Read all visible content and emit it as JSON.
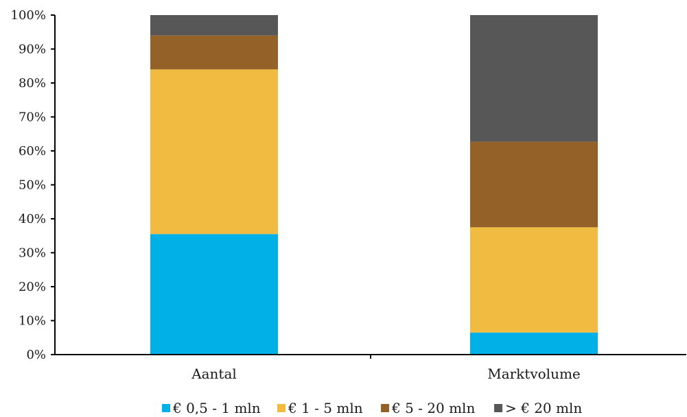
{
  "chart_data": {
    "type": "bar",
    "stacked": true,
    "percent": true,
    "categories": [
      "Aantal",
      "Marktvolume"
    ],
    "series": [
      {
        "name": "€ 0,5 - 1 mln",
        "color": "#00b0e6",
        "values": [
          35.5,
          6.5
        ]
      },
      {
        "name": "€ 1 - 5 mln",
        "color": "#f0bb40",
        "values": [
          48.5,
          31.0
        ]
      },
      {
        "name": "€ 5 - 20 mln",
        "color": "#946128",
        "values": [
          10.0,
          25.2
        ]
      },
      {
        "name": "> € 20 mln",
        "color": "#575757",
        "values": [
          6.0,
          37.3
        ]
      }
    ],
    "ylim": [
      0,
      100
    ],
    "yticks": [
      "0%",
      "10%",
      "20%",
      "30%",
      "40%",
      "50%",
      "60%",
      "70%",
      "80%",
      "90%",
      "100%"
    ],
    "title": "",
    "xlabel": "",
    "ylabel": "",
    "grid": false,
    "legend_position": "bottom"
  }
}
